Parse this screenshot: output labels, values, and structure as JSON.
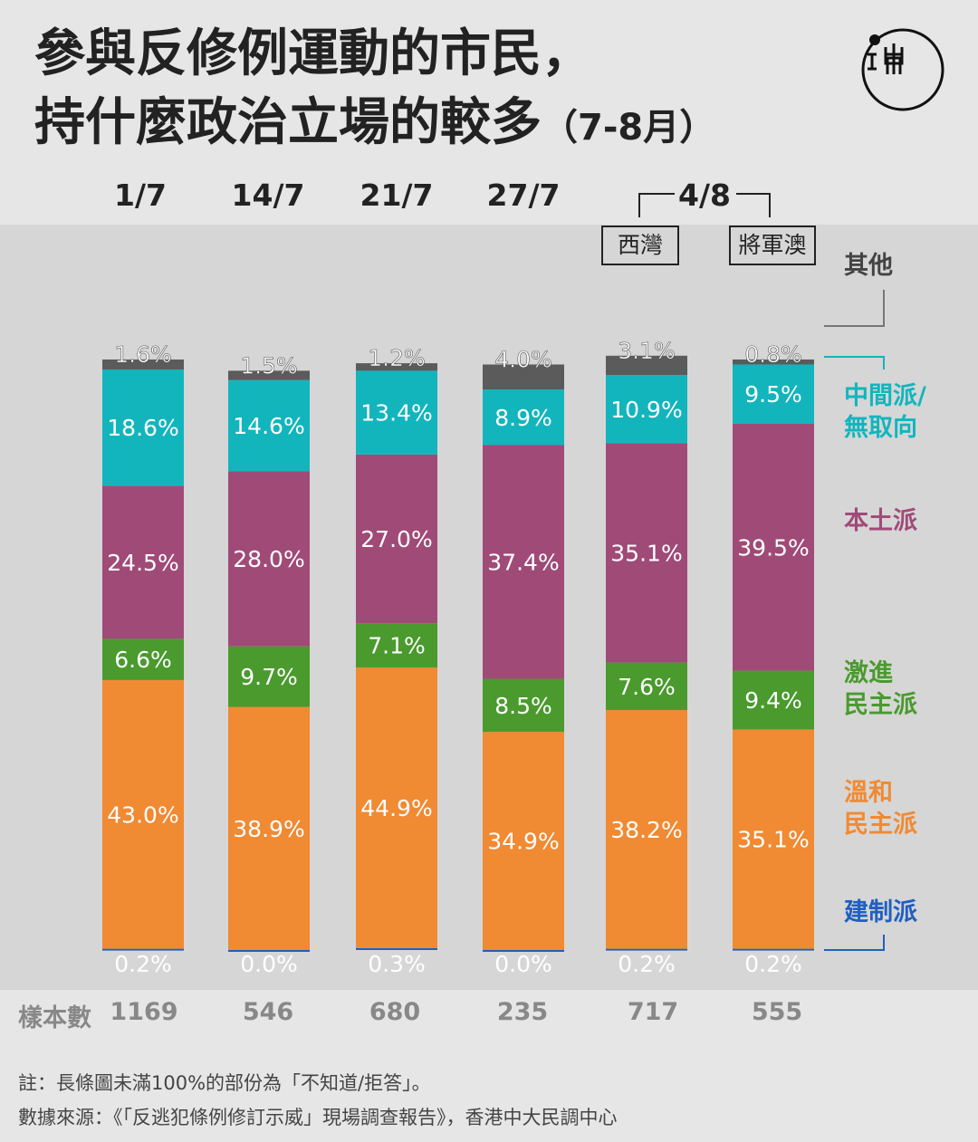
{
  "title": {
    "line1": "參與反修例運動的市民，",
    "line2": "持什麼政治立場的較多",
    "line2_suffix": "（7-8月）"
  },
  "logo": {
    "name": "initium-logo-icon",
    "text": "山而"
  },
  "group_label": "4/8",
  "locations": [
    "西灣",
    "將軍澳"
  ],
  "sample_label": "樣本數",
  "legend": {
    "other": "其他",
    "centrist_l1": "中間派/",
    "centrist_l2": "無取向",
    "localist": "本土派",
    "radical_l1": "激進",
    "radical_l2": "民主派",
    "moderate_l1": "溫和",
    "moderate_l2": "民主派",
    "establishment": "建制派"
  },
  "footnotes": {
    "note": "註：長條圖未滿100%的部份為「不知道/拒答」。",
    "source": "數據來源：《「反逃犯條例修訂示威」現場調查報告》，香港中大民調中心"
  },
  "colors": {
    "other": "#5b5b5b",
    "centrist": "#13b5bd",
    "localist": "#a04a78",
    "radical": "#4a9a2e",
    "moderate": "#f08a33",
    "establishment": "#1f5fc2"
  },
  "chart_data": {
    "type": "bar",
    "stacked": true,
    "title": "參與反修例運動的市民，持什麼政治立場的較多（7-8月）",
    "categories": [
      "1/7",
      "14/7",
      "21/7",
      "27/7",
      "4/8",
      "4/8"
    ],
    "sample_sizes": [
      "1169",
      "546",
      "680",
      "235",
      "717",
      "555"
    ],
    "unit": "%",
    "ylim": [
      0,
      100
    ],
    "series": [
      {
        "name": "建制派",
        "key": "establishment",
        "values": [
          0.2,
          0.0,
          0.3,
          0.0,
          0.2,
          0.2
        ],
        "labels": [
          "0.2%",
          "0.0%",
          "0.3%",
          "0.0%",
          "0.2%",
          "0.2%"
        ]
      },
      {
        "name": "溫和民主派",
        "key": "moderate",
        "values": [
          43.0,
          38.9,
          44.9,
          34.9,
          38.2,
          35.1
        ],
        "labels": [
          "43.0%",
          "38.9%",
          "44.9%",
          "34.9%",
          "38.2%",
          "35.1%"
        ]
      },
      {
        "name": "激進民主派",
        "key": "radical",
        "values": [
          6.6,
          9.7,
          7.1,
          8.5,
          7.6,
          9.4
        ],
        "labels": [
          "6.6%",
          "9.7%",
          "7.1%",
          "8.5%",
          "7.6%",
          "9.4%"
        ]
      },
      {
        "name": "本土派",
        "key": "localist",
        "values": [
          24.5,
          28.0,
          27.0,
          37.4,
          35.1,
          39.5
        ],
        "labels": [
          "24.5%",
          "28.0%",
          "27.0%",
          "37.4%",
          "35.1%",
          "39.5%"
        ]
      },
      {
        "name": "中間派/無取向",
        "key": "centrist",
        "values": [
          18.6,
          14.6,
          13.4,
          8.9,
          10.9,
          9.5
        ],
        "labels": [
          "18.6%",
          "14.6%",
          "13.4%",
          "8.9%",
          "10.9%",
          "9.5%"
        ]
      },
      {
        "name": "其他",
        "key": "other",
        "values": [
          1.6,
          1.5,
          1.2,
          4.0,
          3.1,
          0.8
        ],
        "labels": [
          "1.6%",
          "1.5%",
          "1.2%",
          "4.0%",
          "3.1%",
          "0.8%"
        ]
      }
    ],
    "note": "長條圖未滿100%的部份為「不知道/拒答」"
  }
}
